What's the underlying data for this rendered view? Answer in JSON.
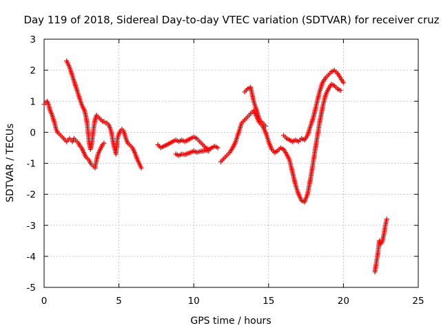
{
  "chart_data": {
    "type": "scatter",
    "title": "Day 119 of 2018, Sidereal Day-to-day VTEC variation (SDTVAR) for receiver cruz",
    "xlabel": "GPS time / hours",
    "ylabel": "SDTVAR / TECUs",
    "xlim": [
      0,
      25
    ],
    "ylim": [
      -5,
      3
    ],
    "x_ticks": [
      0,
      5,
      10,
      15,
      20,
      25
    ],
    "y_ticks": [
      -5,
      -4,
      -3,
      -2,
      -1,
      0,
      1,
      2,
      3
    ],
    "grid": true,
    "marker": "+",
    "color": "#ff0000",
    "series": [
      {
        "x": [
          0.0,
          0.1,
          0.2,
          0.3,
          0.4,
          0.5,
          0.6,
          0.7,
          0.8,
          0.9,
          1.0,
          1.1,
          1.2,
          1.3,
          1.4,
          1.5,
          1.6,
          1.7,
          1.8,
          1.9,
          2.0,
          2.1,
          2.2,
          2.3,
          2.4,
          2.5,
          2.6,
          2.7,
          2.8,
          2.9,
          3.0,
          3.1,
          3.2,
          3.3,
          3.4,
          3.5,
          3.6,
          3.7,
          3.8,
          3.9,
          4.0
        ],
        "y": [
          0.9,
          0.95,
          1.0,
          0.9,
          0.7,
          0.6,
          0.45,
          0.3,
          0.1,
          0.0,
          -0.05,
          -0.1,
          -0.15,
          -0.2,
          -0.25,
          -0.3,
          -0.25,
          -0.2,
          -0.25,
          -0.3,
          -0.2,
          -0.25,
          -0.3,
          -0.35,
          -0.45,
          -0.5,
          -0.6,
          -0.7,
          -0.8,
          -0.85,
          -0.9,
          -1.0,
          -1.05,
          -1.1,
          -1.15,
          -0.9,
          -0.7,
          -0.6,
          -0.5,
          -0.4,
          -0.35
        ]
      },
      {
        "x": [
          1.5,
          1.6,
          1.7,
          1.8,
          1.9,
          2.0,
          2.1,
          2.2,
          2.3,
          2.4,
          2.5,
          2.6,
          2.7,
          2.8,
          2.9,
          3.0,
          3.1,
          3.2,
          3.3,
          3.4,
          3.5,
          3.6,
          3.7,
          3.8,
          3.9,
          4.0,
          4.1,
          4.2,
          4.3,
          4.4,
          4.5,
          4.6,
          4.7,
          4.8,
          4.9,
          5.0,
          5.1,
          5.2,
          5.3,
          5.4,
          5.5,
          5.6,
          5.7,
          5.8,
          5.9,
          6.0,
          6.1,
          6.2,
          6.3,
          6.4,
          6.5
        ],
        "y": [
          2.3,
          2.2,
          2.1,
          1.95,
          1.8,
          1.65,
          1.5,
          1.35,
          1.2,
          1.05,
          0.9,
          0.8,
          0.7,
          0.5,
          0.2,
          -0.3,
          -0.55,
          -0.3,
          0.1,
          0.4,
          0.55,
          0.5,
          0.45,
          0.4,
          0.35,
          0.35,
          0.3,
          0.3,
          0.25,
          0.15,
          0.0,
          -0.3,
          -0.5,
          -0.7,
          -0.2,
          -0.05,
          0.05,
          0.1,
          0.05,
          -0.1,
          -0.25,
          -0.35,
          -0.4,
          -0.45,
          -0.5,
          -0.6,
          -0.7,
          -0.85,
          -0.95,
          -1.05,
          -1.15
        ]
      },
      {
        "x": [
          7.6,
          7.8,
          8.0,
          8.2,
          8.4,
          8.6,
          8.8,
          9.0,
          9.2,
          9.4,
          9.6,
          9.8,
          10.0,
          10.2,
          10.4,
          10.6,
          10.8,
          11.0,
          11.2,
          11.4,
          11.6
        ],
        "y": [
          -0.4,
          -0.5,
          -0.45,
          -0.4,
          -0.35,
          -0.3,
          -0.25,
          -0.3,
          -0.25,
          -0.3,
          -0.25,
          -0.2,
          -0.15,
          -0.2,
          -0.3,
          -0.4,
          -0.5,
          -0.55,
          -0.5,
          -0.45,
          -0.5
        ]
      },
      {
        "x": [
          8.8,
          9.0,
          9.2,
          9.4,
          9.6,
          9.8,
          10.0,
          10.2,
          10.4,
          10.6,
          10.8,
          11.0
        ],
        "y": [
          -0.7,
          -0.75,
          -0.7,
          -0.72,
          -0.68,
          -0.65,
          -0.6,
          -0.65,
          -0.62,
          -0.6,
          -0.58,
          -0.6
        ]
      },
      {
        "x": [
          11.8,
          12.0,
          12.2,
          12.4,
          12.6,
          12.8,
          13.0,
          13.2,
          13.4,
          13.6,
          13.8,
          14.0,
          14.2,
          14.4,
          14.6,
          14.8,
          15.0,
          15.2,
          15.4,
          15.6,
          15.8,
          16.0,
          16.2,
          16.4,
          16.6,
          16.8,
          17.0,
          17.2,
          17.4,
          17.6,
          17.8,
          18.0,
          18.2,
          18.4,
          18.6,
          18.8,
          19.0,
          19.2,
          19.4,
          19.6,
          19.8
        ],
        "y": [
          -0.95,
          -0.85,
          -0.75,
          -0.65,
          -0.5,
          -0.3,
          0.0,
          0.3,
          0.4,
          0.5,
          0.6,
          0.7,
          0.5,
          0.3,
          0.2,
          0.0,
          -0.3,
          -0.55,
          -0.65,
          -0.6,
          -0.5,
          -0.55,
          -0.7,
          -0.9,
          -1.3,
          -1.7,
          -2.0,
          -2.2,
          -2.25,
          -2.0,
          -1.5,
          -0.9,
          -0.3,
          0.3,
          0.8,
          1.2,
          1.4,
          1.55,
          1.5,
          1.4,
          1.35
        ]
      },
      {
        "x": [
          13.4,
          13.6,
          13.8,
          14.0,
          14.2,
          14.4,
          14.6,
          14.8
        ],
        "y": [
          1.3,
          1.4,
          1.45,
          1.0,
          0.7,
          0.4,
          0.3,
          0.2
        ]
      },
      {
        "x": [
          16.0,
          16.2,
          16.4,
          16.6,
          16.8,
          17.0,
          17.2,
          17.4,
          17.6,
          17.8,
          18.0,
          18.2,
          18.4,
          18.6,
          18.8,
          19.0,
          19.2,
          19.4,
          19.6,
          19.8,
          20.0
        ],
        "y": [
          -0.1,
          -0.2,
          -0.25,
          -0.3,
          -0.25,
          -0.3,
          -0.2,
          -0.25,
          -0.1,
          0.2,
          0.5,
          0.9,
          1.3,
          1.6,
          1.75,
          1.85,
          1.95,
          2.0,
          1.9,
          1.75,
          1.6
        ]
      },
      {
        "x": [
          22.1,
          22.2,
          22.3,
          22.4,
          22.5,
          22.6,
          22.7,
          22.8,
          22.9
        ],
        "y": [
          -4.5,
          -4.2,
          -3.9,
          -3.5,
          -3.6,
          -3.5,
          -3.3,
          -3.0,
          -2.8
        ]
      }
    ]
  }
}
